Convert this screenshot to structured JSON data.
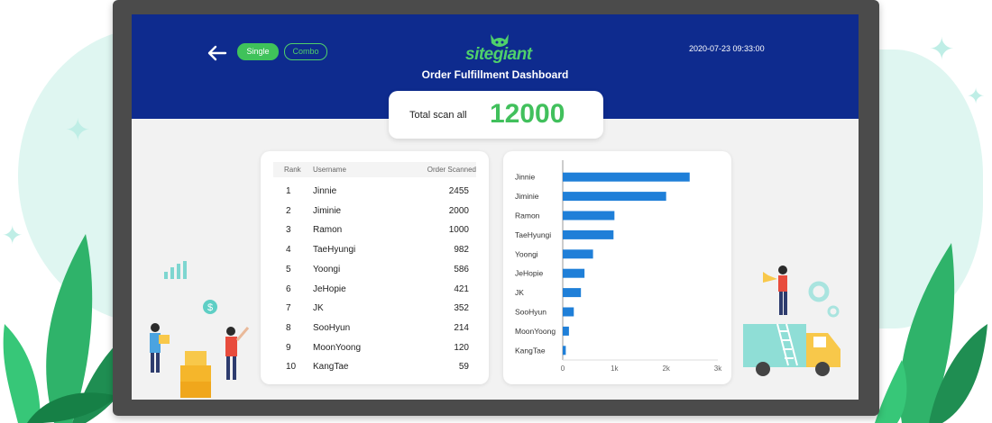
{
  "header": {
    "back_icon": "arrow-left-icon",
    "filters": [
      {
        "label": "Single",
        "active": true
      },
      {
        "label": "Combo",
        "active": false
      }
    ],
    "logo_text": "sitegiant",
    "title": "Order Fulfillment Dashboard",
    "datetime": "2020-07-23 09:33:00"
  },
  "summary": {
    "label": "Total scan all",
    "value": "12000"
  },
  "table": {
    "columns": [
      "Rank",
      "Username",
      "Order Scanned"
    ],
    "rows": [
      {
        "rank": "1",
        "username": "Jinnie",
        "orders": "2455"
      },
      {
        "rank": "2",
        "username": "Jiminie",
        "orders": "2000"
      },
      {
        "rank": "3",
        "username": "Ramon",
        "orders": "1000"
      },
      {
        "rank": "4",
        "username": "TaeHyungi",
        "orders": "982"
      },
      {
        "rank": "5",
        "username": "Yoongi",
        "orders": "586"
      },
      {
        "rank": "6",
        "username": "JeHopie",
        "orders": "421"
      },
      {
        "rank": "7",
        "username": "JK",
        "orders": "352"
      },
      {
        "rank": "8",
        "username": "SooHyun",
        "orders": "214"
      },
      {
        "rank": "9",
        "username": "MoonYoong",
        "orders": "120"
      },
      {
        "rank": "10",
        "username": "KangTae",
        "orders": "59"
      }
    ]
  },
  "chart_data": {
    "type": "bar",
    "orientation": "horizontal",
    "categories": [
      "Jinnie",
      "Jiminie",
      "Ramon",
      "TaeHyungi",
      "Yoongi",
      "JeHopie",
      "JK",
      "SooHyun",
      "MoonYoong",
      "KangTae"
    ],
    "values": [
      2455,
      2000,
      1000,
      982,
      586,
      421,
      352,
      214,
      120,
      59
    ],
    "xlim": [
      0,
      3000
    ],
    "xticks": [
      0,
      1000,
      2000,
      3000
    ],
    "xtick_labels": [
      "0",
      "1k",
      "2k",
      "3k"
    ],
    "bar_color": "#1f7fd8",
    "grid": false
  },
  "colors": {
    "header_bg": "#0e2b8e",
    "accent_green": "#41c05c",
    "bar_blue": "#1f7fd8"
  }
}
